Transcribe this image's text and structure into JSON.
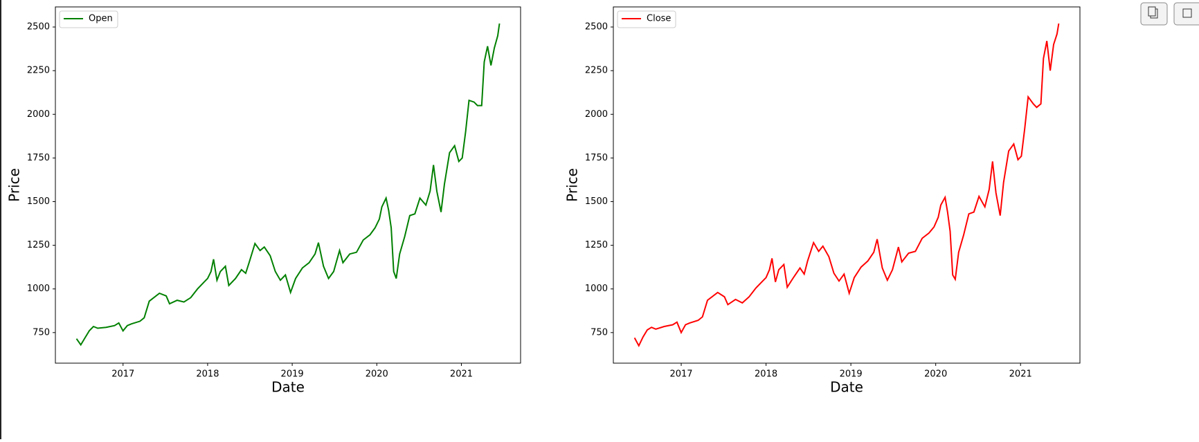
{
  "chart_data": [
    {
      "type": "line",
      "xlabel": "Date",
      "ylabel": "Price",
      "legend": "upper left",
      "x": [
        2016.45,
        2016.5,
        2016.55,
        2016.6,
        2016.65,
        2016.7,
        2016.8,
        2016.9,
        2016.95,
        2017.0,
        2017.05,
        2017.1,
        2017.2,
        2017.25,
        2017.31,
        2017.43,
        2017.51,
        2017.55,
        2017.64,
        2017.72,
        2017.8,
        2017.88,
        2017.96,
        2018.0,
        2018.04,
        2018.07,
        2018.11,
        2018.15,
        2018.21,
        2018.25,
        2018.33,
        2018.4,
        2018.45,
        2018.49,
        2018.56,
        2018.62,
        2018.67,
        2018.74,
        2018.8,
        2018.86,
        2018.92,
        2018.98,
        2019.04,
        2019.12,
        2019.2,
        2019.27,
        2019.31,
        2019.37,
        2019.43,
        2019.49,
        2019.56,
        2019.6,
        2019.68,
        2019.76,
        2019.84,
        2019.92,
        2019.98,
        2020.03,
        2020.06,
        2020.11,
        2020.14,
        2020.17,
        2020.2,
        2020.23,
        2020.27,
        2020.33,
        2020.39,
        2020.45,
        2020.51,
        2020.58,
        2020.63,
        2020.67,
        2020.71,
        2020.76,
        2020.8,
        2020.86,
        2020.92,
        2020.97,
        2021.01,
        2021.05,
        2021.09,
        2021.15,
        2021.19,
        2021.24,
        2021.27,
        2021.31,
        2021.35,
        2021.39,
        2021.43,
        2021.45
      ],
      "series": [
        {
          "name": "Open",
          "color": "#008000",
          "values": [
            715,
            680,
            720,
            760,
            785,
            775,
            780,
            790,
            805,
            760,
            790,
            800,
            815,
            835,
            930,
            975,
            960,
            915,
            935,
            925,
            950,
            1000,
            1040,
            1060,
            1100,
            1170,
            1050,
            1100,
            1130,
            1020,
            1060,
            1110,
            1090,
            1150,
            1260,
            1220,
            1240,
            1190,
            1100,
            1050,
            1080,
            980,
            1060,
            1120,
            1150,
            1200,
            1265,
            1130,
            1060,
            1100,
            1220,
            1150,
            1200,
            1210,
            1280,
            1310,
            1350,
            1400,
            1470,
            1520,
            1450,
            1350,
            1100,
            1060,
            1200,
            1300,
            1420,
            1430,
            1520,
            1480,
            1560,
            1710,
            1560,
            1440,
            1600,
            1780,
            1820,
            1730,
            1750,
            1900,
            2080,
            2070,
            2050,
            2050,
            2300,
            2390,
            2280,
            2380,
            2450,
            2520
          ]
        }
      ],
      "xlim": [
        2016.2,
        2021.7
      ],
      "ylim": [
        575,
        2615
      ],
      "xticks": [
        2017,
        2018,
        2019,
        2020,
        2021
      ],
      "yticks": [
        750,
        1000,
        1250,
        1500,
        1750,
        2000,
        2250,
        2500
      ]
    },
    {
      "type": "line",
      "xlabel": "Date",
      "ylabel": "Price",
      "legend": "upper left",
      "x": [
        2016.45,
        2016.5,
        2016.55,
        2016.6,
        2016.65,
        2016.7,
        2016.8,
        2016.9,
        2016.95,
        2017.0,
        2017.05,
        2017.1,
        2017.2,
        2017.25,
        2017.31,
        2017.43,
        2017.51,
        2017.55,
        2017.64,
        2017.72,
        2017.8,
        2017.88,
        2017.96,
        2018.0,
        2018.04,
        2018.07,
        2018.11,
        2018.15,
        2018.21,
        2018.25,
        2018.33,
        2018.4,
        2018.45,
        2018.49,
        2018.56,
        2018.62,
        2018.67,
        2018.74,
        2018.8,
        2018.86,
        2018.92,
        2018.98,
        2019.04,
        2019.12,
        2019.2,
        2019.27,
        2019.31,
        2019.37,
        2019.43,
        2019.49,
        2019.56,
        2019.6,
        2019.68,
        2019.76,
        2019.84,
        2019.92,
        2019.98,
        2020.03,
        2020.06,
        2020.11,
        2020.14,
        2020.17,
        2020.2,
        2020.23,
        2020.27,
        2020.33,
        2020.39,
        2020.45,
        2020.51,
        2020.58,
        2020.63,
        2020.67,
        2020.71,
        2020.76,
        2020.8,
        2020.86,
        2020.92,
        2020.97,
        2021.01,
        2021.05,
        2021.09,
        2021.15,
        2021.19,
        2021.24,
        2021.27,
        2021.31,
        2021.35,
        2021.39,
        2021.43,
        2021.45
      ],
      "series": [
        {
          "name": "Close",
          "color": "#ff0000",
          "values": [
            720,
            675,
            725,
            765,
            780,
            770,
            785,
            795,
            810,
            750,
            795,
            805,
            820,
            840,
            935,
            980,
            955,
            910,
            940,
            920,
            955,
            1005,
            1045,
            1065,
            1110,
            1175,
            1040,
            1110,
            1140,
            1010,
            1070,
            1120,
            1085,
            1160,
            1265,
            1215,
            1245,
            1185,
            1090,
            1045,
            1085,
            975,
            1065,
            1125,
            1160,
            1210,
            1285,
            1120,
            1050,
            1110,
            1240,
            1155,
            1205,
            1215,
            1290,
            1320,
            1355,
            1410,
            1480,
            1525,
            1440,
            1330,
            1080,
            1055,
            1210,
            1310,
            1430,
            1440,
            1530,
            1470,
            1570,
            1730,
            1550,
            1420,
            1610,
            1790,
            1830,
            1740,
            1760,
            1920,
            2100,
            2060,
            2040,
            2060,
            2320,
            2420,
            2250,
            2400,
            2460,
            2520
          ]
        }
      ],
      "xlim": [
        2016.2,
        2021.7
      ],
      "ylim": [
        575,
        2615
      ],
      "xticks": [
        2017,
        2018,
        2019,
        2020,
        2021
      ],
      "yticks": [
        750,
        1000,
        1250,
        1500,
        1750,
        2000,
        2250,
        2500
      ]
    }
  ]
}
